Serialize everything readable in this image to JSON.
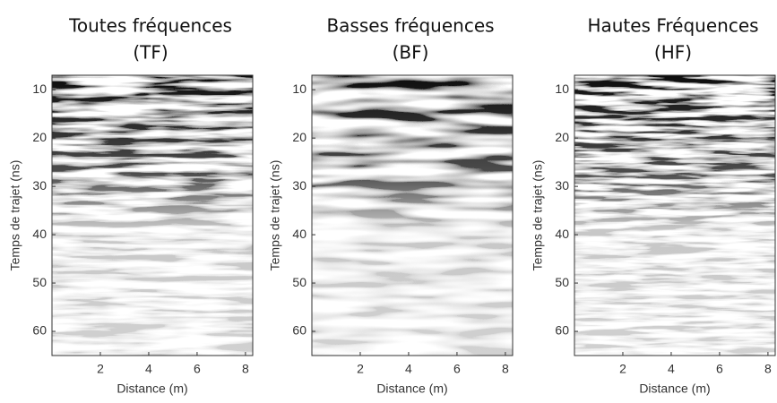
{
  "chart_data": [
    {
      "type": "image",
      "title": [
        "Toutes fréquences",
        "(TF)"
      ],
      "xlabel": "Distance (m)",
      "ylabel": "Temps de trajet (ns)",
      "xlim": [
        0,
        8.3
      ],
      "xticks": [
        2,
        4,
        6,
        8
      ],
      "ylim": [
        7,
        65
      ],
      "yticks": [
        10,
        20,
        30,
        40,
        50,
        60
      ],
      "y_inverted": true
    },
    {
      "type": "image",
      "title": [
        "Basses fréquences",
        "(BF)"
      ],
      "xlabel": "Distance (m)",
      "ylabel": "Temps de trajet (ns)",
      "xlim": [
        0,
        8.3
      ],
      "xticks": [
        2,
        4,
        6,
        8
      ],
      "ylim": [
        7,
        65
      ],
      "yticks": [
        10,
        20,
        30,
        40,
        50,
        60
      ],
      "y_inverted": true
    },
    {
      "type": "image",
      "title": [
        "Hautes Fréquences",
        "(HF)"
      ],
      "xlabel": "Distance (m)",
      "ylabel": "Temps de trajet (ns)",
      "xlim": [
        0,
        8.3
      ],
      "xticks": [
        2,
        4,
        6,
        8
      ],
      "ylim": [
        7,
        65
      ],
      "yticks": [
        10,
        20,
        30,
        40,
        50,
        60
      ],
      "y_inverted": true
    }
  ]
}
